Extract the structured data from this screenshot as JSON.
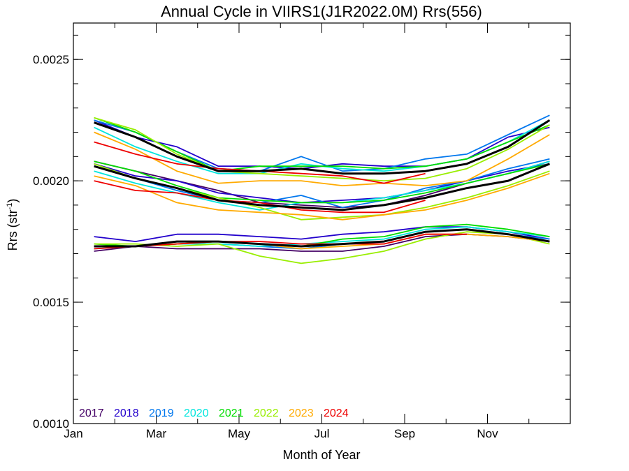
{
  "chart_data": {
    "type": "line",
    "title": "Annual Cycle in VIIRS1(J1R2022.0M) Rrs(556)",
    "xlabel": "Month of Year",
    "ylabel": "Rrs (str",
    "ylabel_sup": "-1",
    "ylabel_close": ")",
    "xlim": [
      1,
      13
    ],
    "ylim": [
      0.001,
      0.00265
    ],
    "x_ticks": [
      {
        "value": 1,
        "label": "Jan"
      },
      {
        "value": 3,
        "label": "Mar"
      },
      {
        "value": 5,
        "label": "May"
      },
      {
        "value": 7,
        "label": "Jul"
      },
      {
        "value": 9,
        "label": "Sep"
      },
      {
        "value": 11,
        "label": "Nov"
      }
    ],
    "y_ticks": [
      {
        "value": 0.001,
        "label": "0.0010"
      },
      {
        "value": 0.0015,
        "label": "0.0015"
      },
      {
        "value": 0.002,
        "label": "0.0020"
      },
      {
        "value": 0.0025,
        "label": "0.0025"
      }
    ],
    "legend_position": "bottom-left",
    "x": [
      1.5,
      2.5,
      3.5,
      4.5,
      5.5,
      6.5,
      7.5,
      8.5,
      9.5,
      10.5,
      11.5,
      12.5
    ],
    "series": [
      {
        "name": "2017",
        "color": "#440066",
        "bands": [
          [
            0.00208,
            0.00204,
            0.002,
            0.00196,
            0.00191,
            0.0019,
            0.00189,
            0.0019,
            0.00194,
            0.00199,
            0.00203,
            0.00208
          ],
          [
            0.00171,
            0.00173,
            0.00172,
            0.00172,
            0.00172,
            0.00171,
            0.00171,
            0.00173,
            0.00177,
            0.00178,
            0.00177,
            0.00175
          ]
        ]
      },
      {
        "name": "2018",
        "color": "#2200cc",
        "bands": [
          [
            0.00225,
            0.00218,
            0.00214,
            0.00206,
            0.00206,
            0.00205,
            0.00207,
            0.00206,
            0.00206,
            0.00209,
            0.00218,
            0.00222
          ],
          [
            0.00207,
            0.00202,
            0.002,
            0.00195,
            0.00193,
            0.00191,
            0.00192,
            0.00193,
            0.00196,
            0.002,
            0.00204,
            0.00207
          ],
          [
            0.00177,
            0.00175,
            0.00178,
            0.00178,
            0.00177,
            0.00176,
            0.00178,
            0.00179,
            0.00181,
            0.00181,
            0.00179,
            0.00176
          ]
        ]
      },
      {
        "name": "2019",
        "color": "#0077ee",
        "bands": [
          [
            0.00225,
            0.0022,
            0.00212,
            0.00205,
            0.00204,
            0.0021,
            0.00204,
            0.00205,
            0.00209,
            0.00211,
            0.00219,
            0.00227
          ],
          [
            0.00206,
            0.00201,
            0.00196,
            0.00192,
            0.00191,
            0.00194,
            0.00189,
            0.00192,
            0.00197,
            0.002,
            0.00205,
            0.00209
          ],
          [
            0.00173,
            0.00173,
            0.00174,
            0.00174,
            0.00173,
            0.00172,
            0.00174,
            0.00175,
            0.00179,
            0.0018,
            0.00178,
            0.00176
          ]
        ]
      },
      {
        "name": "2020",
        "color": "#00e5dd",
        "bands": [
          [
            0.00222,
            0.00214,
            0.00208,
            0.00203,
            0.00203,
            0.00207,
            0.00205,
            0.00204,
            0.00206,
            0.00209,
            0.00216,
            0.00225
          ],
          [
            0.00204,
            0.00199,
            0.00195,
            0.00191,
            0.00188,
            0.00191,
            0.00191,
            0.00193,
            0.00196,
            0.00199,
            0.00203,
            0.00208
          ],
          [
            0.00172,
            0.00173,
            0.00174,
            0.00174,
            0.00173,
            0.00174,
            0.00175,
            0.00176,
            0.0018,
            0.00181,
            0.00179,
            0.00177
          ]
        ]
      },
      {
        "name": "2021",
        "color": "#00dd00",
        "bands": [
          [
            0.00226,
            0.0022,
            0.00212,
            0.00204,
            0.00206,
            0.00206,
            0.00206,
            0.00205,
            0.00206,
            0.00209,
            0.00216,
            0.00223
          ],
          [
            0.00208,
            0.00204,
            0.00198,
            0.00193,
            0.00192,
            0.00191,
            0.00191,
            0.00192,
            0.00195,
            0.00199,
            0.00203,
            0.00207
          ],
          [
            0.00174,
            0.00173,
            0.00174,
            0.00175,
            0.00174,
            0.00173,
            0.00176,
            0.00177,
            0.00181,
            0.00182,
            0.0018,
            0.00177
          ]
        ]
      },
      {
        "name": "2022",
        "color": "#99ee00",
        "bands": [
          [
            0.00226,
            0.00221,
            0.00211,
            0.00204,
            0.00203,
            0.00202,
            0.00201,
            0.002,
            0.00201,
            0.00205,
            0.00213,
            0.00223
          ],
          [
            0.00207,
            0.00201,
            0.00197,
            0.00193,
            0.00189,
            0.00184,
            0.00185,
            0.00186,
            0.00189,
            0.00193,
            0.00198,
            0.00204
          ],
          [
            0.00174,
            0.00174,
            0.00173,
            0.00174,
            0.00169,
            0.00166,
            0.00168,
            0.00171,
            0.00176,
            0.00179,
            0.00178,
            0.00174
          ]
        ]
      },
      {
        "name": "2023",
        "color": "#ffaa00",
        "bands": [
          [
            0.0022,
            0.00213,
            0.00204,
            0.00199,
            0.002,
            0.002,
            0.00198,
            0.00199,
            0.00198,
            0.002,
            0.00209,
            0.00219
          ],
          [
            0.00202,
            0.00198,
            0.00191,
            0.00188,
            0.00187,
            0.00186,
            0.00184,
            0.00186,
            0.00188,
            0.00192,
            0.00197,
            0.00203
          ],
          [
            0.00173,
            0.00173,
            0.00174,
            0.00175,
            0.00174,
            0.00172,
            0.00173,
            0.00174,
            0.00178,
            0.00178,
            0.00177,
            0.00175
          ]
        ]
      },
      {
        "name": "2024",
        "color": "#ee0000",
        "bands": [
          [
            0.00216,
            0.00211,
            0.00207,
            0.00205,
            0.00204,
            0.00203,
            0.00202,
            0.00199,
            0.00203,
            null,
            null,
            null
          ],
          [
            0.002,
            0.00196,
            0.00195,
            0.00192,
            0.00191,
            0.00188,
            0.00187,
            0.00187,
            0.00192,
            null,
            null,
            null
          ],
          [
            0.00172,
            0.00173,
            0.00174,
            0.00175,
            0.00175,
            0.00174,
            0.00174,
            0.00174,
            0.00178,
            0.00178,
            null,
            null
          ]
        ]
      },
      {
        "name": "",
        "color": "#000000",
        "width": 3,
        "bands": [
          [
            0.00224,
            0.00218,
            0.0021,
            0.00204,
            0.00204,
            0.00205,
            0.00203,
            0.00203,
            0.00204,
            0.00207,
            0.00214,
            0.00225
          ],
          [
            0.00206,
            0.00201,
            0.00197,
            0.00192,
            0.0019,
            0.00189,
            0.00188,
            0.0019,
            0.00193,
            0.00197,
            0.002,
            0.00207
          ],
          [
            0.00173,
            0.00173,
            0.00175,
            0.00175,
            0.00174,
            0.00173,
            0.00174,
            0.00175,
            0.00179,
            0.0018,
            0.00178,
            0.00175
          ]
        ]
      }
    ]
  }
}
